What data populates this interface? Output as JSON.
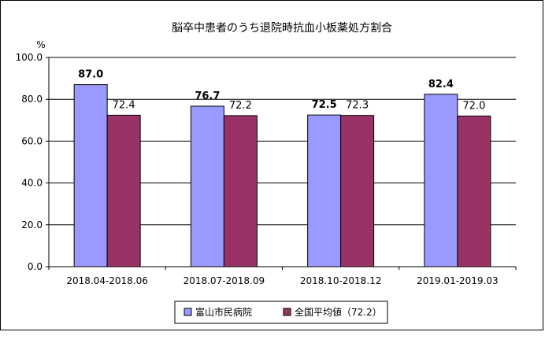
{
  "chart_data": {
    "type": "bar",
    "title": "脳卒中患者のうち退院時抗血小板薬処方割合",
    "ylabel": "%",
    "ylim": [
      0,
      100
    ],
    "ytick_step": 20,
    "ytick_labels": [
      "0.0",
      "20.0",
      "40.0",
      "60.0",
      "80.0",
      "100.0"
    ],
    "grid": true,
    "legend_position": "bottom",
    "categories": [
      "2018.04-2018.06",
      "2018.07-2018.09",
      "2018.10-2018.12",
      "2019.01-2019.03"
    ],
    "series": [
      {
        "name": "富山市民病院",
        "values": [
          87.0,
          76.7,
          72.5,
          82.4
        ],
        "labels": [
          "87.0",
          "76.7",
          "72.5",
          "82.4"
        ],
        "color": "#9999FF",
        "label_bold": true
      },
      {
        "name": "全国平均値（72.2）",
        "values": [
          72.4,
          72.2,
          72.3,
          72.0
        ],
        "labels": [
          "72.4",
          "72.2",
          "72.3",
          "72.0"
        ],
        "color": "#993366",
        "label_bold": false
      }
    ]
  }
}
